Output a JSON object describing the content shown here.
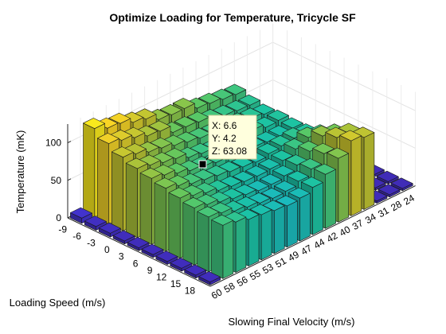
{
  "chart_data": {
    "type": "bar3d",
    "title": "Optimize Loading for Temperature, Tricycle SF",
    "xlabel": "Loading Speed (m/s)",
    "ylabel": "Slowing Final Velocity (m/s)",
    "zlabel": "Temperature (mK)",
    "x_ticks": [
      "-9",
      "-6",
      "-3",
      "0",
      "3",
      "6",
      "9",
      "12",
      "15",
      "18"
    ],
    "y_ticks": [
      "60",
      "58",
      "56",
      "55",
      "53",
      "51",
      "49",
      "47",
      "44",
      "42",
      "40",
      "37",
      "34",
      "31",
      "28",
      "24"
    ],
    "z_ticks": [
      "0",
      "50",
      "100"
    ],
    "zlim": [
      0,
      125
    ],
    "colormap": [
      "#3e26a8",
      "#4743f8",
      "#2d8cf3",
      "#1bb0d8",
      "#1bc3a4",
      "#5cc862",
      "#b5c234",
      "#f9d326",
      "#f9fb15"
    ],
    "values": [
      [
        7,
        118,
        110,
        108,
        101,
        97,
        88,
        86,
        86,
        78,
        76,
        73,
        71,
        3,
        3,
        3
      ],
      [
        5,
        107,
        103,
        98,
        92,
        90,
        80,
        79,
        77,
        72,
        69,
        67,
        66,
        3,
        3,
        3
      ],
      [
        5,
        98,
        94,
        88,
        85,
        80,
        76,
        73,
        71,
        71,
        68,
        66,
        63,
        3,
        3,
        3
      ],
      [
        4,
        92,
        88,
        83,
        80,
        73,
        70,
        67,
        67,
        66,
        68,
        63,
        64,
        3,
        3,
        3
      ],
      [
        4,
        88,
        84,
        78,
        73,
        70,
        67,
        65,
        64,
        63,
        61,
        61,
        63,
        3,
        3,
        3
      ],
      [
        4,
        84,
        79,
        73,
        70,
        67,
        64,
        62,
        60,
        63,
        65,
        67,
        64,
        3,
        3,
        3
      ],
      [
        4,
        80,
        75,
        70,
        65,
        62,
        60,
        59,
        60,
        63,
        70,
        77,
        72,
        3,
        3,
        3
      ],
      [
        4,
        76,
        72,
        67,
        63,
        60,
        57,
        57,
        60,
        66,
        76,
        88,
        82,
        3,
        3,
        3
      ],
      [
        4,
        73,
        70,
        64,
        61,
        58,
        56,
        57,
        62,
        70,
        82,
        95,
        92,
        3,
        3,
        3
      ],
      [
        4,
        71,
        67,
        62,
        60,
        57,
        55,
        57,
        63,
        72,
        85,
        100,
        96,
        3,
        3,
        3
      ]
    ],
    "datatip": {
      "x_label": "X: 6.6",
      "y_label": "Y: 4.2",
      "z_label": "Z: 63.08"
    }
  }
}
